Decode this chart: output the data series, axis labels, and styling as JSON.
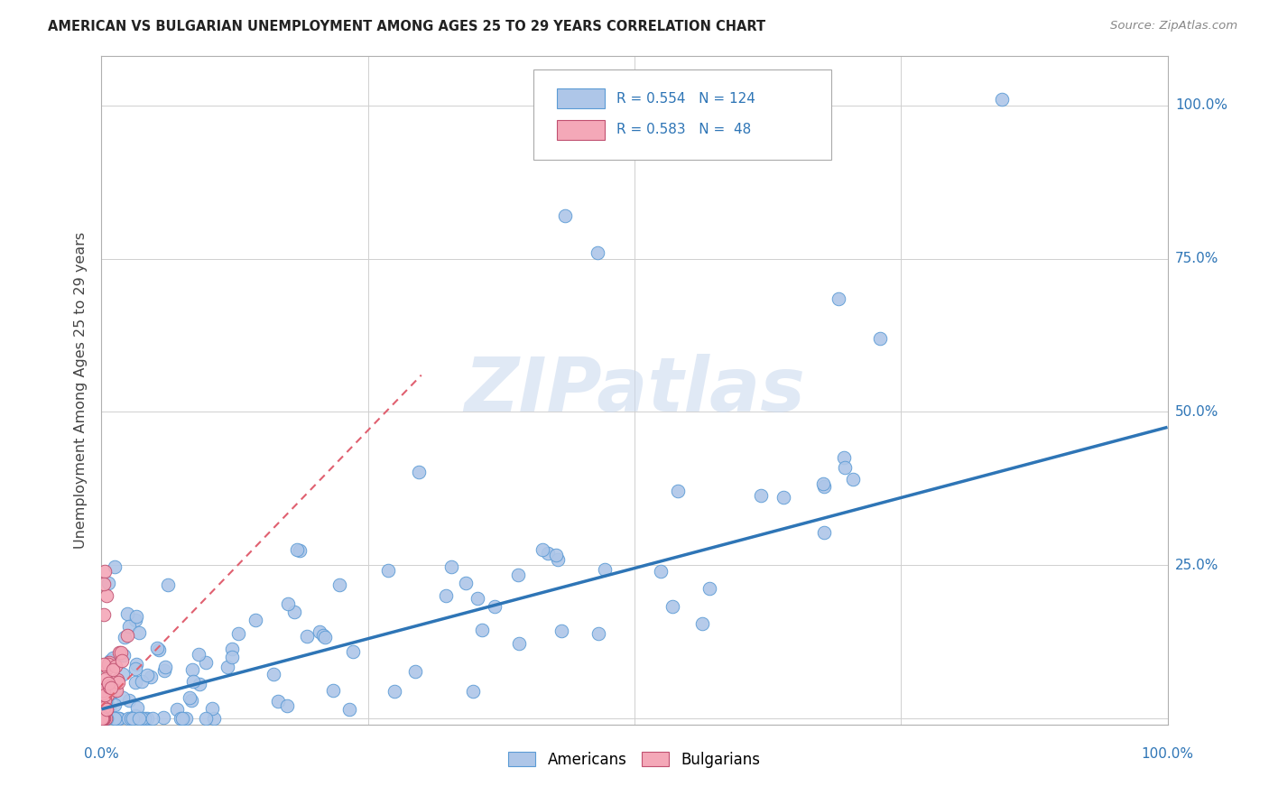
{
  "title": "AMERICAN VS BULGARIAN UNEMPLOYMENT AMONG AGES 25 TO 29 YEARS CORRELATION CHART",
  "source": "Source: ZipAtlas.com",
  "ylabel": "Unemployment Among Ages 25 to 29 years",
  "americans_color": "#aec6e8",
  "americans_edge": "#5b9bd5",
  "bulgarians_color": "#f4a8b8",
  "bulgarians_edge": "#c05070",
  "trendline_american_color": "#2e75b6",
  "trendline_bulgarian_color": "#e06070",
  "watermark": "ZIPatlas",
  "legend_r_am": "0.554",
  "legend_n_am": "124",
  "legend_r_bg": "0.583",
  "legend_n_bg": " 48",
  "seed": 42,
  "american_n": 124,
  "bulgarian_n": 48
}
